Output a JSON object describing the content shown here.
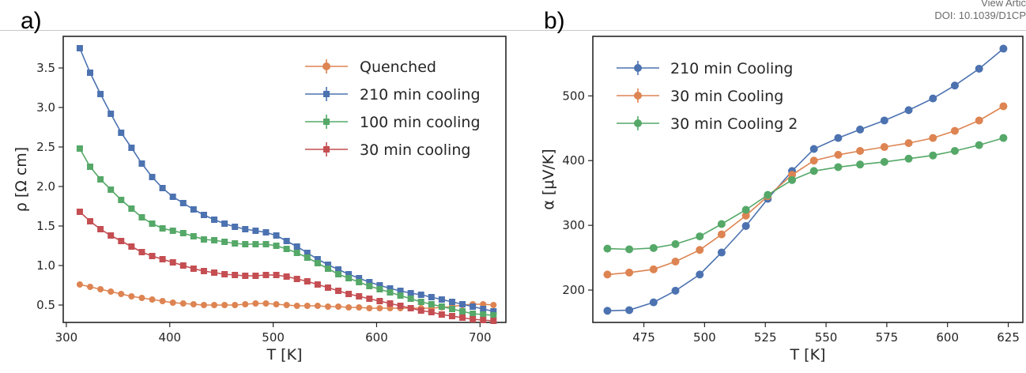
{
  "header": {
    "view_text": "View Artic",
    "doi_text": "DOI: 10.1039/D1CP"
  },
  "panel_labels": {
    "a": "a)",
    "b": "b)"
  },
  "chart_data": [
    {
      "type": "line",
      "panel": "a)",
      "xlabel": "T [K]",
      "ylabel": "ρ [Ω cm]",
      "xlim": [
        297,
        725
      ],
      "ylim": [
        0.28,
        3.9
      ],
      "xticks": [
        300,
        400,
        500,
        600,
        700
      ],
      "yticks": [
        0.5,
        1.0,
        1.5,
        2.0,
        2.5,
        3.0,
        3.5
      ],
      "ytick_labels": [
        "0.5",
        "1.0",
        "1.5",
        "2.0",
        "2.5",
        "3.0",
        "3.5"
      ],
      "grid": false,
      "legend_position": "top-right",
      "x": [
        313,
        323,
        333,
        343,
        353,
        363,
        373,
        383,
        393,
        403,
        413,
        423,
        433,
        443,
        453,
        463,
        473,
        483,
        493,
        503,
        513,
        523,
        533,
        543,
        553,
        563,
        573,
        583,
        593,
        603,
        613,
        623,
        633,
        643,
        653,
        663,
        673,
        683,
        693,
        703,
        713
      ],
      "series": [
        {
          "name": "Quenched",
          "color": "#dd8452",
          "marker": "circle",
          "values": [
            0.76,
            0.73,
            0.7,
            0.67,
            0.64,
            0.61,
            0.59,
            0.57,
            0.55,
            0.53,
            0.52,
            0.51,
            0.5,
            0.5,
            0.5,
            0.5,
            0.51,
            0.52,
            0.52,
            0.51,
            0.5,
            0.49,
            0.49,
            0.49,
            0.48,
            0.48,
            0.47,
            0.47,
            0.46,
            0.46,
            0.46,
            0.46,
            0.46,
            0.46,
            0.46,
            0.47,
            0.48,
            0.5,
            0.51,
            0.51,
            0.5
          ]
        },
        {
          "name": "210 min cooling",
          "color": "#4c72b0",
          "marker": "square",
          "values": [
            3.75,
            3.44,
            3.17,
            2.92,
            2.68,
            2.49,
            2.29,
            2.12,
            1.98,
            1.87,
            1.79,
            1.71,
            1.64,
            1.58,
            1.53,
            1.49,
            1.46,
            1.44,
            1.42,
            1.38,
            1.31,
            1.24,
            1.16,
            1.08,
            1.01,
            0.95,
            0.89,
            0.84,
            0.79,
            0.75,
            0.71,
            0.68,
            0.65,
            0.63,
            0.6,
            0.57,
            0.54,
            0.51,
            0.48,
            0.45,
            0.42
          ]
        },
        {
          "name": "100 min cooling",
          "color": "#55a868",
          "marker": "square",
          "values": [
            2.48,
            2.25,
            2.09,
            1.96,
            1.83,
            1.72,
            1.61,
            1.53,
            1.47,
            1.44,
            1.41,
            1.37,
            1.33,
            1.32,
            1.3,
            1.28,
            1.27,
            1.27,
            1.27,
            1.25,
            1.21,
            1.16,
            1.1,
            1.03,
            0.96,
            0.89,
            0.84,
            0.79,
            0.74,
            0.7,
            0.66,
            0.62,
            0.58,
            0.54,
            0.51,
            0.48,
            0.45,
            0.42,
            0.39,
            0.38,
            0.37
          ]
        },
        {
          "name": "30 min cooling",
          "color": "#c44e52",
          "marker": "square",
          "values": [
            1.68,
            1.56,
            1.46,
            1.38,
            1.31,
            1.24,
            1.17,
            1.12,
            1.08,
            1.04,
            1.0,
            0.96,
            0.93,
            0.91,
            0.89,
            0.88,
            0.87,
            0.87,
            0.88,
            0.88,
            0.86,
            0.83,
            0.8,
            0.76,
            0.72,
            0.68,
            0.64,
            0.61,
            0.58,
            0.55,
            0.52,
            0.49,
            0.46,
            0.43,
            0.41,
            0.38,
            0.36,
            0.34,
            0.32,
            0.31,
            0.3
          ]
        }
      ]
    },
    {
      "type": "line",
      "panel": "b)",
      "xlabel": "T [K]",
      "ylabel": "α [μV/K]",
      "xlim": [
        454,
        631
      ],
      "ylim": [
        150,
        592
      ],
      "xticks": [
        475,
        500,
        525,
        550,
        575,
        600,
        625
      ],
      "yticks": [
        200,
        300,
        400,
        500
      ],
      "grid": false,
      "legend_position": "top-left",
      "x": [
        460,
        469,
        479,
        488,
        498,
        507,
        517,
        526,
        536,
        545,
        555,
        564,
        574,
        584,
        594,
        603,
        613,
        623
      ],
      "series": [
        {
          "name": "210 min Cooling",
          "color": "#4c72b0",
          "marker": "circle",
          "error_bars": true,
          "values": [
            168,
            169,
            181,
            199,
            224,
            258,
            299,
            341,
            384,
            418,
            435,
            448,
            462,
            478,
            496,
            516,
            542,
            573
          ]
        },
        {
          "name": "30 min Cooling",
          "color": "#dd8452",
          "marker": "circle",
          "error_bars": true,
          "values": [
            224,
            227,
            232,
            244,
            262,
            286,
            315,
            345,
            378,
            400,
            409,
            415,
            421,
            427,
            435,
            446,
            462,
            484
          ]
        },
        {
          "name": "30 min Cooling 2",
          "color": "#55a868",
          "marker": "circle",
          "error_bars": true,
          "values": [
            264,
            263,
            265,
            271,
            283,
            302,
            324,
            347,
            370,
            384,
            390,
            394,
            398,
            403,
            408,
            415,
            424,
            435
          ]
        }
      ]
    }
  ]
}
